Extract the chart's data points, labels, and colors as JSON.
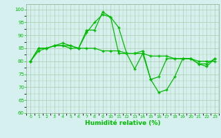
{
  "xlabel": "Humidité relative (%)",
  "background_color": "#d5f0ee",
  "grid_color": "#aaccaa",
  "line_color": "#00bb00",
  "xlim": [
    -0.5,
    23.5
  ],
  "ylim": [
    60,
    102
  ],
  "yticks": [
    60,
    65,
    70,
    75,
    80,
    85,
    90,
    95,
    100
  ],
  "xticks": [
    0,
    1,
    2,
    3,
    4,
    5,
    6,
    7,
    8,
    9,
    10,
    11,
    12,
    13,
    14,
    15,
    16,
    17,
    18,
    19,
    20,
    21,
    22,
    23
  ],
  "series": [
    [
      80,
      85,
      85,
      86,
      87,
      86,
      85,
      92,
      92,
      99,
      97,
      93,
      83,
      83,
      84,
      73,
      68,
      69,
      74,
      81,
      81,
      79,
      79,
      81
    ],
    [
      80,
      85,
      85,
      86,
      86,
      85,
      85,
      85,
      85,
      84,
      84,
      84,
      83,
      83,
      83,
      82,
      82,
      82,
      81,
      81,
      81,
      80,
      80,
      80
    ],
    [
      80,
      84,
      85,
      86,
      86,
      86,
      85,
      91,
      95,
      98,
      97,
      83,
      83,
      77,
      83,
      73,
      74,
      81,
      81,
      81,
      81,
      79,
      78,
      81
    ]
  ]
}
